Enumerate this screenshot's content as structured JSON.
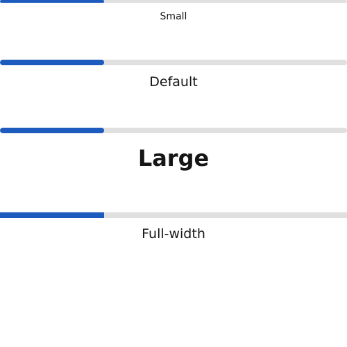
{
  "progress_bars": [
    {
      "label": "Small",
      "value_fraction": 0.3
    },
    {
      "label": "Default",
      "value_fraction": 0.3
    },
    {
      "label": "Large",
      "value_fraction": 0.3
    },
    {
      "label": "Full-width",
      "value_fraction": 0.3
    }
  ],
  "colors": {
    "fill": "#1d5bbf",
    "track": "#e0e0e0",
    "text": "#161616"
  }
}
